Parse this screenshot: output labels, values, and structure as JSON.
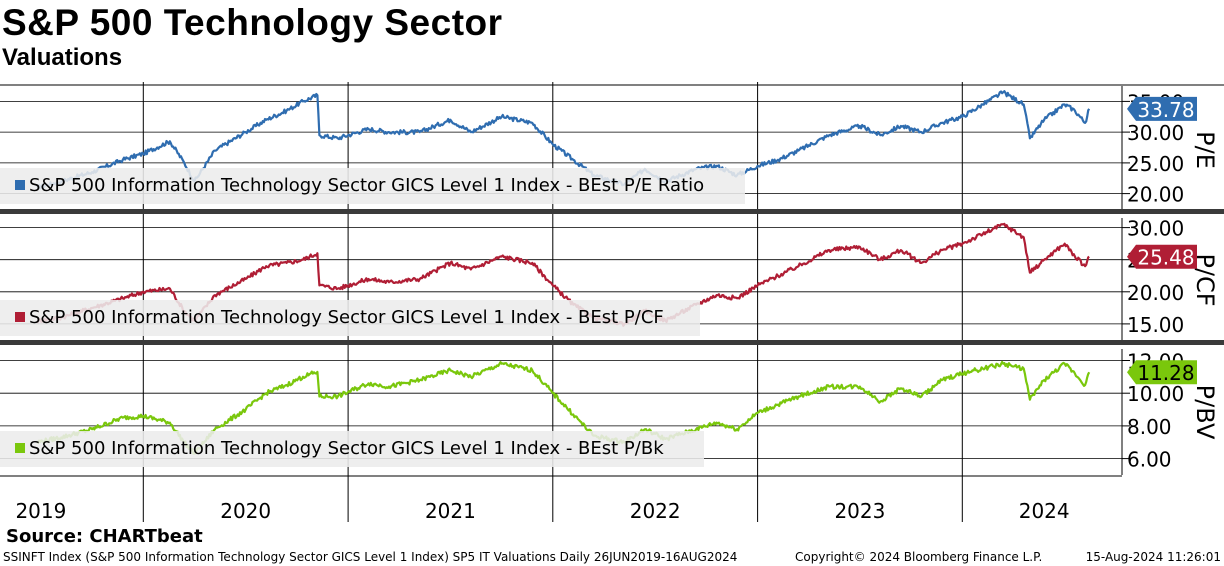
{
  "title": "S&P 500 Technology Sector",
  "subtitle": "Valuations",
  "source": "Source: CHARTbeat",
  "footer": {
    "left": "SSINFT Index (S&P 500 Information Technology Sector GICS Level 1 Index) SP5 IT Valuations  Daily 26JUN2019-16AUG2024",
    "middle": "Copyright© 2024 Bloomberg Finance L.P.",
    "right": "15-Aug-2024 11:26:01"
  },
  "chart_data": [
    {
      "type": "line",
      "ylabel": "P/E",
      "ylim": [
        17.5,
        37.5
      ],
      "yticks": [
        "20.00",
        "25.00",
        "30.00",
        "35.00"
      ],
      "legend": "S&P 500 Information Technology Sector GICS Level 1 Index - BEst P/E Ratio",
      "last_value": "33.78",
      "color": "#2f6db0",
      "series": [
        {
          "name": "BEst P/E Ratio",
          "x": [
            2019.48,
            2019.6,
            2019.75,
            2019.9,
            2020.0,
            2020.13,
            2020.2,
            2020.25,
            2020.35,
            2020.5,
            2020.6,
            2020.7,
            2020.78,
            2020.85,
            2020.86,
            2020.95,
            2021.1,
            2021.2,
            2021.35,
            2021.5,
            2021.6,
            2021.75,
            2021.9,
            2022.0,
            2022.1,
            2022.2,
            2022.35,
            2022.45,
            2022.55,
            2022.7,
            2022.8,
            2022.9,
            2023.0,
            2023.1,
            2023.2,
            2023.35,
            2023.5,
            2023.6,
            2023.7,
            2023.8,
            2023.9,
            2024.0,
            2024.1,
            2024.2,
            2024.3,
            2024.33,
            2024.4,
            2024.5,
            2024.55,
            2024.6,
            2024.62
          ],
          "y": [
            21.0,
            22.0,
            23.5,
            25.5,
            26.5,
            28.5,
            25.0,
            22.0,
            27.0,
            30.0,
            32.0,
            33.5,
            35.0,
            36.0,
            29.5,
            29.0,
            30.5,
            30.0,
            30.0,
            32.0,
            30.0,
            32.5,
            31.5,
            28.0,
            25.5,
            23.0,
            21.5,
            24.0,
            22.0,
            24.0,
            24.5,
            23.0,
            24.5,
            25.5,
            27.0,
            29.5,
            31.0,
            29.5,
            31.0,
            30.0,
            31.5,
            32.5,
            34.5,
            36.5,
            34.5,
            29.0,
            32.0,
            34.5,
            33.5,
            31.5,
            33.78
          ]
        }
      ]
    },
    {
      "type": "line",
      "ylabel": "P/CF",
      "ylim": [
        12.5,
        31.5
      ],
      "yticks": [
        "15.00",
        "20.00",
        "25.00",
        "30.00"
      ],
      "legend": "S&P 500 Information Technology Sector GICS Level 1 Index - BEst P/CF",
      "last_value": "25.48",
      "color": "#b01e35",
      "series": [
        {
          "name": "BEst P/CF",
          "x": [
            2019.48,
            2019.6,
            2019.75,
            2019.9,
            2020.0,
            2020.13,
            2020.2,
            2020.25,
            2020.35,
            2020.5,
            2020.6,
            2020.7,
            2020.78,
            2020.85,
            2020.86,
            2020.95,
            2021.1,
            2021.2,
            2021.35,
            2021.5,
            2021.6,
            2021.75,
            2021.9,
            2022.0,
            2022.1,
            2022.2,
            2022.35,
            2022.45,
            2022.55,
            2022.7,
            2022.8,
            2022.9,
            2023.0,
            2023.1,
            2023.2,
            2023.35,
            2023.5,
            2023.6,
            2023.7,
            2023.8,
            2023.9,
            2024.0,
            2024.1,
            2024.2,
            2024.3,
            2024.33,
            2024.4,
            2024.5,
            2024.55,
            2024.6,
            2024.62
          ],
          "y": [
            15.5,
            16.0,
            17.5,
            19.0,
            20.0,
            20.5,
            17.0,
            15.5,
            19.5,
            22.0,
            24.0,
            24.5,
            25.0,
            26.0,
            21.0,
            20.5,
            22.0,
            21.5,
            22.0,
            24.5,
            23.5,
            25.5,
            24.5,
            21.0,
            18.0,
            16.0,
            15.0,
            17.0,
            15.5,
            18.0,
            19.5,
            19.0,
            21.0,
            22.5,
            24.0,
            26.5,
            27.0,
            25.0,
            26.5,
            24.5,
            26.5,
            27.5,
            29.0,
            30.5,
            28.5,
            23.0,
            25.0,
            27.5,
            25.5,
            24.0,
            25.48
          ]
        }
      ]
    },
    {
      "type": "line",
      "ylabel": "P/BV",
      "ylim": [
        5.0,
        12.7
      ],
      "yticks": [
        "6.00",
        "8.00",
        "10.00",
        "12.00"
      ],
      "legend": "S&P 500 Information Technology Sector GICS Level 1 Index - BEst P/Bk",
      "last_value": "11.28",
      "color": "#7ac70c",
      "series": [
        {
          "name": "BEst P/Bk",
          "x": [
            2019.48,
            2019.6,
            2019.75,
            2019.9,
            2020.0,
            2020.13,
            2020.2,
            2020.25,
            2020.35,
            2020.5,
            2020.6,
            2020.7,
            2020.78,
            2020.85,
            2020.86,
            2020.95,
            2021.1,
            2021.2,
            2021.35,
            2021.5,
            2021.6,
            2021.75,
            2021.9,
            2022.0,
            2022.1,
            2022.2,
            2022.35,
            2022.45,
            2022.55,
            2022.7,
            2022.8,
            2022.9,
            2023.0,
            2023.1,
            2023.2,
            2023.35,
            2023.5,
            2023.6,
            2023.7,
            2023.8,
            2023.9,
            2024.0,
            2024.1,
            2024.2,
            2024.3,
            2024.33,
            2024.4,
            2024.5,
            2024.55,
            2024.6,
            2024.62
          ],
          "y": [
            7.0,
            7.3,
            7.8,
            8.5,
            8.6,
            8.2,
            7.0,
            6.3,
            7.8,
            9.0,
            10.0,
            10.5,
            11.0,
            11.3,
            9.8,
            9.8,
            10.6,
            10.4,
            10.8,
            11.4,
            11.0,
            11.8,
            11.4,
            10.0,
            8.7,
            7.4,
            7.0,
            7.8,
            7.2,
            7.8,
            8.2,
            7.8,
            8.8,
            9.3,
            9.8,
            10.4,
            10.4,
            9.5,
            10.3,
            9.8,
            10.8,
            11.2,
            11.5,
            11.8,
            11.5,
            9.6,
            10.8,
            11.8,
            11.2,
            10.5,
            11.28
          ]
        }
      ]
    }
  ],
  "x_axis": {
    "labels": [
      "2019",
      "2020",
      "2021",
      "2022",
      "2023",
      "2024"
    ],
    "xlim": [
      2019.3,
      2024.78
    ],
    "year_boundaries": [
      2020.0,
      2021.0,
      2022.0,
      2023.0,
      2024.0
    ]
  }
}
